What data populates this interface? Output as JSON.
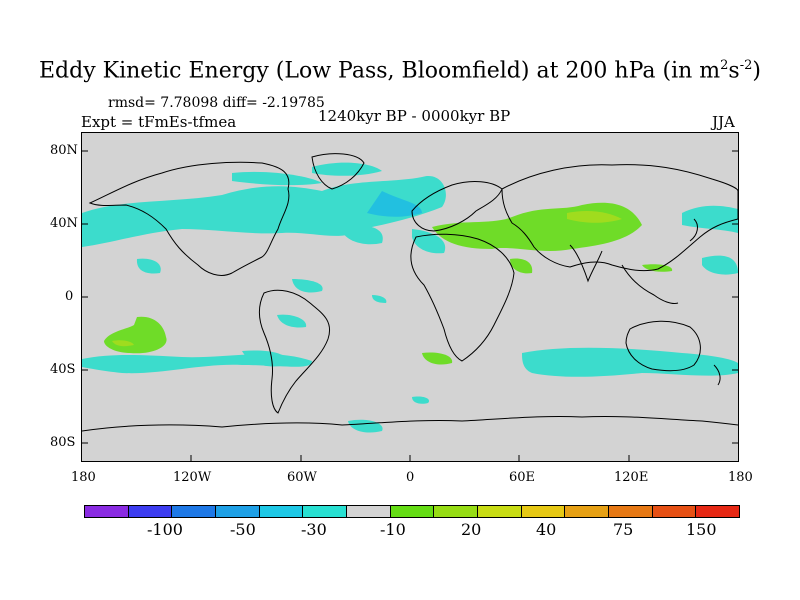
{
  "title_prefix": "Eddy Kinetic Energy (Low Pass, Bloomfield) at 200 hPa (in m",
  "title_sup1": "2",
  "title_mid": "s",
  "title_sup2": "-2",
  "title_suffix": ")",
  "stats": "rmsd= 7.78098 diff= -2.19785",
  "experiment": "Expt = tFmEs-tfmea",
  "period": "1240kyr BP - 0000kyr BP",
  "season": "JJA",
  "lat_labels": [
    "80N",
    "40N",
    "0",
    "40S",
    "80S"
  ],
  "lon_labels": [
    "180",
    "120W",
    "60W",
    "0",
    "60E",
    "120E",
    "180"
  ],
  "colorbar": {
    "colors": [
      "#8a2be2",
      "#3c3cf0",
      "#1e78e6",
      "#1ea0e6",
      "#1ec8e6",
      "#28e0d2",
      "#d3d3d3",
      "#64dc14",
      "#96dc14",
      "#c8dc14",
      "#e6c814",
      "#e6a014",
      "#e67814",
      "#e65014",
      "#e62814"
    ],
    "labels": [
      "-100",
      "-50",
      "-30",
      "-10",
      "20",
      "40",
      "75",
      "150"
    ]
  },
  "anomaly_colors": {
    "negative": "#3cdccc",
    "strong_negative": "#22c0e0",
    "positive": "#6fdc28",
    "strong_positive": "#a0dc1e"
  }
}
